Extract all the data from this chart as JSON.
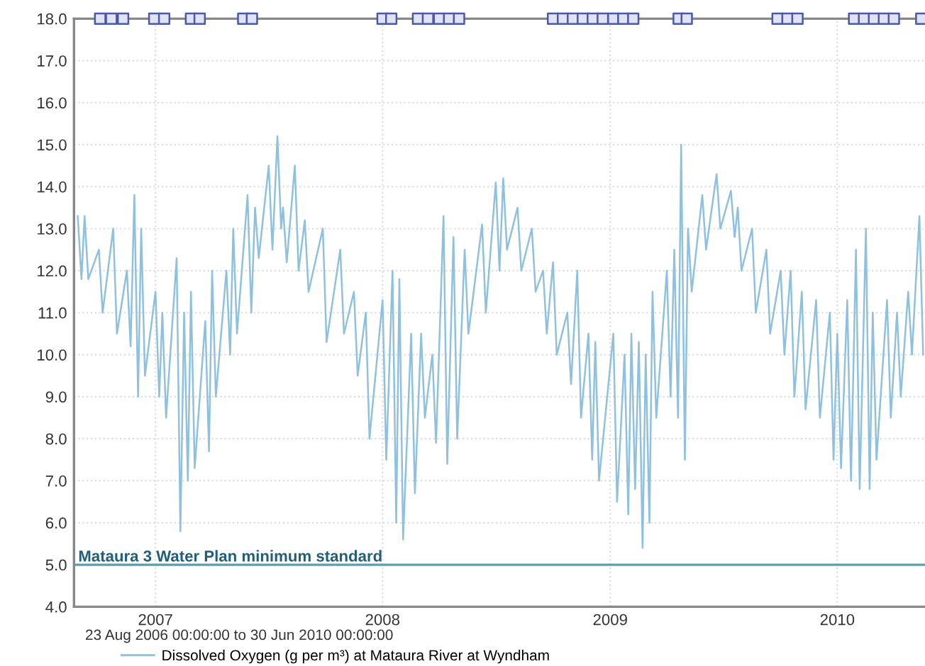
{
  "chart_data": {
    "type": "line",
    "xlim": [
      "2006-08-23",
      "2010-05-22"
    ],
    "ylim": [
      4,
      18
    ],
    "xticks": [
      "2007",
      "2008",
      "2009",
      "2010"
    ],
    "yticks": [
      {
        "value": 4,
        "label": "4.0"
      },
      {
        "value": 5,
        "label": "5.0"
      },
      {
        "value": 6,
        "label": "6.0"
      },
      {
        "value": 7,
        "label": "7.0"
      },
      {
        "value": 8,
        "label": "8.0"
      },
      {
        "value": 9,
        "label": "9.0"
      },
      {
        "value": 10,
        "label": "10.0"
      },
      {
        "value": 11,
        "label": "11.0"
      },
      {
        "value": 12,
        "label": "12.0"
      },
      {
        "value": 13,
        "label": "13.0"
      },
      {
        "value": 14,
        "label": "14.0"
      },
      {
        "value": 15,
        "label": "15.0"
      },
      {
        "value": 16,
        "label": "16.0"
      },
      {
        "value": 17,
        "label": "17.0"
      },
      {
        "value": 18,
        "label": "18.0"
      }
    ],
    "grid": true,
    "legend": "bottom",
    "line_style": "solid",
    "annotations": [
      "23 Aug 2006 00:00:00 to 30 Jun 2010 00:00:00"
    ],
    "ref_lines": [
      {
        "axis": "y",
        "value": 5,
        "label": "Mataura 3 Water Plan minimum standard",
        "color": "#5f9ea8"
      }
    ],
    "series": [
      {
        "name": "Dissolved Oxygen (g per m³) at Mataura River at Wyndham",
        "color": "#8fc1df",
        "x": [
          "2006-08-29",
          "2006-09-04",
          "2006-09-09",
          "2006-09-15",
          "2006-10-02",
          "2006-10-08",
          "2006-10-25",
          "2006-10-31",
          "2006-11-16",
          "2006-11-22",
          "2006-11-28",
          "2006-12-04",
          "2006-12-09",
          "2006-12-15",
          "2007-01-01",
          "2007-01-07",
          "2007-01-12",
          "2007-01-18",
          "2007-02-04",
          "2007-02-10",
          "2007-02-16",
          "2007-02-22",
          "2007-02-27",
          "2007-03-05",
          "2007-03-22",
          "2007-03-28",
          "2007-04-02",
          "2007-04-08",
          "2007-04-25",
          "2007-05-01",
          "2007-05-06",
          "2007-05-12",
          "2007-05-29",
          "2007-06-04",
          "2007-06-10",
          "2007-06-16",
          "2007-07-02",
          "2007-07-08",
          "2007-07-16",
          "2007-07-22",
          "2007-07-25",
          "2007-07-31",
          "2007-08-13",
          "2007-08-19",
          "2007-08-29",
          "2007-09-04",
          "2007-09-27",
          "2007-10-03",
          "2007-10-25",
          "2007-10-31",
          "2007-11-16",
          "2007-11-22",
          "2007-12-05",
          "2007-12-11",
          "2008-01-01",
          "2008-01-07",
          "2008-01-17",
          "2008-01-23",
          "2008-01-28",
          "2008-02-03",
          "2008-02-16",
          "2008-02-22",
          "2008-03-03",
          "2008-03-09",
          "2008-03-21",
          "2008-03-27",
          "2008-04-08",
          "2008-04-14",
          "2008-04-24",
          "2008-04-30",
          "2008-05-12",
          "2008-05-18",
          "2008-06-09",
          "2008-06-15",
          "2008-07-01",
          "2008-07-07",
          "2008-07-13",
          "2008-07-19",
          "2008-08-05",
          "2008-08-11",
          "2008-08-28",
          "2008-09-03",
          "2008-09-15",
          "2008-09-21",
          "2008-10-01",
          "2008-10-07",
          "2008-10-24",
          "2008-10-30",
          "2008-11-09",
          "2008-11-15",
          "2008-11-27",
          "2008-12-03",
          "2008-12-08",
          "2008-12-14",
          "2009-01-06",
          "2009-01-12",
          "2009-01-24",
          "2009-01-30",
          "2009-02-04",
          "2009-02-10",
          "2009-02-16",
          "2009-02-22",
          "2009-02-27",
          "2009-03-05",
          "2009-03-10",
          "2009-03-16",
          "2009-04-02",
          "2009-04-08",
          "2009-04-14",
          "2009-04-20",
          "2009-04-25",
          "2009-05-01",
          "2009-05-06",
          "2009-05-12",
          "2009-05-29",
          "2009-06-04",
          "2009-06-21",
          "2009-06-27",
          "2009-07-14",
          "2009-07-20",
          "2009-07-25",
          "2009-07-31",
          "2009-08-17",
          "2009-08-23",
          "2009-09-09",
          "2009-09-15",
          "2009-10-02",
          "2009-10-08",
          "2009-10-18",
          "2009-10-24",
          "2009-11-05",
          "2009-11-11",
          "2009-11-28",
          "2009-12-04",
          "2009-12-20",
          "2009-12-26",
          "2010-01-01",
          "2010-01-07",
          "2010-01-17",
          "2010-01-23",
          "2010-01-31",
          "2010-02-06",
          "2010-02-16",
          "2010-02-22",
          "2010-02-27",
          "2010-03-05",
          "2010-03-22",
          "2010-03-28",
          "2010-04-07",
          "2010-04-13",
          "2010-04-25",
          "2010-05-01",
          "2010-05-13",
          "2010-05-19"
        ],
        "values": [
          13.3,
          11.8,
          13.3,
          11.8,
          12.5,
          11.0,
          13.0,
          10.5,
          12.0,
          10.2,
          13.8,
          9.0,
          13.0,
          9.5,
          11.5,
          9.0,
          11.0,
          8.5,
          12.3,
          5.8,
          11.0,
          7.0,
          11.5,
          7.3,
          10.8,
          7.7,
          12.0,
          9.0,
          12.0,
          10.0,
          13.0,
          10.5,
          13.8,
          11.0,
          13.5,
          12.3,
          14.5,
          12.5,
          15.2,
          13.0,
          13.5,
          12.2,
          14.5,
          12.0,
          13.2,
          11.5,
          13.0,
          10.3,
          12.5,
          10.5,
          11.5,
          9.5,
          11.0,
          8.0,
          11.3,
          7.5,
          12.0,
          6.0,
          11.8,
          5.6,
          10.5,
          6.7,
          10.5,
          8.5,
          10.0,
          7.9,
          13.3,
          7.4,
          12.8,
          8.0,
          12.5,
          10.5,
          13.1,
          11.0,
          14.1,
          12.0,
          14.2,
          12.5,
          13.5,
          12.0,
          13.0,
          11.5,
          12.0,
          10.5,
          12.2,
          10.0,
          11.0,
          9.3,
          12.0,
          8.5,
          10.5,
          7.5,
          10.3,
          7.0,
          10.5,
          6.5,
          10.0,
          6.2,
          10.5,
          6.8,
          10.3,
          5.4,
          10.0,
          6.0,
          11.5,
          8.5,
          12.0,
          9.0,
          12.5,
          8.5,
          15.0,
          7.5,
          13.0,
          11.5,
          13.8,
          12.5,
          14.3,
          13.0,
          13.9,
          12.8,
          13.5,
          12.0,
          13.0,
          11.0,
          12.5,
          10.5,
          12.0,
          10.0,
          12.0,
          9.0,
          11.5,
          8.7,
          11.3,
          8.5,
          11.0,
          7.5,
          10.5,
          7.3,
          11.3,
          7.0,
          12.5,
          6.8,
          13.0,
          6.8,
          11.0,
          7.5,
          11.3,
          8.5,
          11.0,
          9.0,
          11.5,
          10.0,
          13.3,
          10.0
        ]
      },
      {
        "type": "scatter",
        "marker": "square",
        "color": "#4a5aa8",
        "x": [
          "2006-10-04",
          "2006-10-22",
          "2006-11-10",
          "2006-12-30",
          "2007-01-15",
          "2007-02-27",
          "2007-03-13",
          "2007-05-22",
          "2007-06-05",
          "2008-01-01",
          "2008-01-15",
          "2008-02-27",
          "2008-03-14",
          "2008-04-01",
          "2008-04-17",
          "2008-05-03",
          "2008-10-01",
          "2008-10-17",
          "2008-11-02",
          "2008-11-18",
          "2008-12-04",
          "2008-12-20",
          "2009-01-06",
          "2009-01-22",
          "2009-02-07",
          "2009-04-21",
          "2009-05-04",
          "2009-09-27",
          "2009-10-13",
          "2009-10-29",
          "2010-01-28",
          "2010-02-13",
          "2010-03-01",
          "2010-03-17",
          "2010-04-02",
          "2010-05-16"
        ],
        "values": [
          18,
          18,
          18,
          18,
          18,
          18,
          18,
          18,
          18,
          18,
          18,
          18,
          18,
          18,
          18,
          18,
          18,
          18,
          18,
          18,
          18,
          18,
          18,
          18,
          18,
          18,
          18,
          18,
          18,
          18,
          18,
          18,
          18,
          18,
          18,
          18
        ]
      }
    ]
  }
}
